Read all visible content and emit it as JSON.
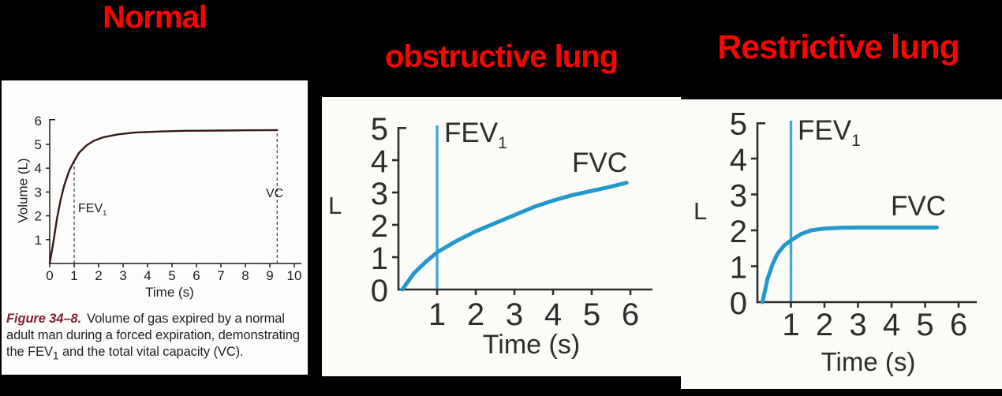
{
  "titles": {
    "normal": "Normal",
    "obstructive": "obstructive lung",
    "restrictive": "Restrictive lung"
  },
  "labels": {
    "fev1_base": "FEV",
    "fev1_sub": "1",
    "fvc": "FVC",
    "vc": "VC"
  },
  "caption": {
    "figure_label": "Figure 34–8.",
    "body_before_sub": "Volume of gas expired by a normal adult man during a forced expiration, demonstrating the FEV",
    "sub": "1",
    "body_after_sub": " and the total vital capacity (VC)."
  },
  "colors": {
    "title_red": "#f70505",
    "curve_blue": "#2497cb",
    "fev1_line_blue": "#41a8d9",
    "normal_curve": "#35191d",
    "caption_maroon": "#7d2134",
    "axis_dark": "#2d2d2d",
    "axis_normal": "#1c1c1c",
    "dashed_gray": "#4a4a4a",
    "background_black": "#000000",
    "panel_white": "#fbfbf8"
  },
  "chart_data": [
    {
      "type": "line",
      "title": "Normal",
      "xlabel": "Time (s)",
      "ylabel": "Volume (L)",
      "xlim": [
        0,
        10.3
      ],
      "ylim": [
        0,
        6
      ],
      "xticks": [
        0,
        1,
        2,
        3,
        4,
        5,
        6,
        7,
        8,
        9,
        10
      ],
      "yticks": [
        1,
        2,
        3,
        4,
        5,
        6
      ],
      "grid": false,
      "series": [
        {
          "name": "forced expiration volume",
          "color": "#35191d",
          "x": [
            0,
            0.15,
            0.3,
            0.45,
            0.6,
            0.8,
            1.0,
            1.2,
            1.5,
            1.8,
            2.2,
            2.8,
            3.5,
            4.5,
            5.5,
            7.0,
            8.0,
            9.3
          ],
          "y": [
            0,
            0.9,
            1.9,
            2.7,
            3.3,
            3.9,
            4.3,
            4.65,
            4.95,
            5.15,
            5.3,
            5.42,
            5.5,
            5.54,
            5.57,
            5.58,
            5.59,
            5.6
          ]
        }
      ],
      "dashed_vlines": [
        {
          "x": 1,
          "y_top": 4.3
        },
        {
          "x": 9.3,
          "y_top": 5.6
        }
      ],
      "annotations": [
        {
          "label": "FEV1",
          "x": 1.2,
          "y": 2.3
        },
        {
          "label": "VC",
          "x": 8.9,
          "y": 3.1
        }
      ]
    },
    {
      "type": "line",
      "title": "obstructive lung",
      "xlabel": "Time (s)",
      "ylabel": "L",
      "xlim": [
        0,
        6.5
      ],
      "ylim": [
        0,
        5
      ],
      "xticks": [
        1,
        2,
        3,
        4,
        5,
        6
      ],
      "yticks": [
        0,
        1,
        2,
        3,
        4,
        5
      ],
      "grid": false,
      "fev1_line_x": 1,
      "series": [
        {
          "name": "FVC curve",
          "color": "#2497cb",
          "x": [
            0.1,
            0.4,
            0.7,
            1.0,
            1.5,
            2.0,
            2.5,
            3.0,
            3.5,
            4.0,
            4.5,
            5.0,
            5.5,
            5.9
          ],
          "y": [
            0,
            0.5,
            0.85,
            1.15,
            1.5,
            1.8,
            2.05,
            2.3,
            2.55,
            2.75,
            2.92,
            3.05,
            3.18,
            3.3
          ]
        }
      ],
      "annotations": [
        {
          "label": "FEV1",
          "x": 1.2,
          "y": 4.9
        },
        {
          "label": "FVC",
          "x": 4.6,
          "y": 4.0
        }
      ]
    },
    {
      "type": "line",
      "title": "Restrictive lung",
      "xlabel": "Time (s)",
      "ylabel": "L",
      "xlim": [
        0,
        6.6
      ],
      "ylim": [
        0,
        5
      ],
      "xticks": [
        1,
        2,
        3,
        4,
        5,
        6
      ],
      "yticks": [
        0,
        1,
        2,
        3,
        4,
        5
      ],
      "grid": false,
      "fev1_line_x": 1,
      "series": [
        {
          "name": "FVC curve",
          "color": "#2497cb",
          "x": [
            0.15,
            0.3,
            0.45,
            0.6,
            0.8,
            1.0,
            1.3,
            1.6,
            2.0,
            2.5,
            3.0,
            4.0,
            5.0,
            5.35
          ],
          "y": [
            0,
            0.65,
            1.05,
            1.35,
            1.58,
            1.72,
            1.9,
            2.0,
            2.05,
            2.07,
            2.08,
            2.08,
            2.08,
            2.08
          ]
        }
      ],
      "annotations": [
        {
          "label": "FEV1",
          "x": 1.2,
          "y": 4.9
        },
        {
          "label": "FVC",
          "x": 4.3,
          "y": 2.7
        }
      ]
    }
  ]
}
